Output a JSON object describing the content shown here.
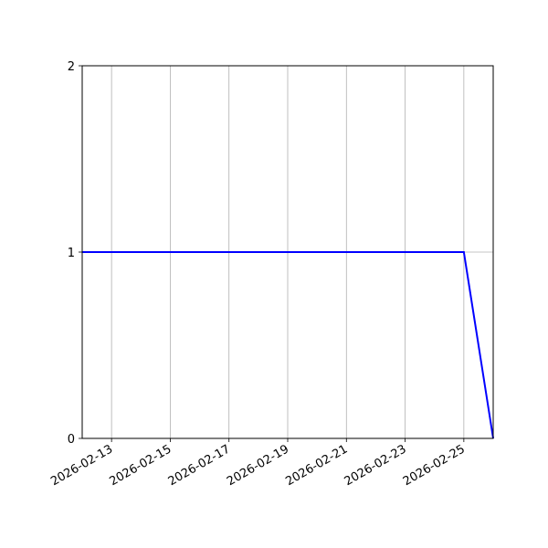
{
  "chart_data": {
    "type": "line",
    "title": "",
    "xlabel": "",
    "ylabel": "",
    "x": [
      "2026-02-12",
      "2026-02-13",
      "2026-02-14",
      "2026-02-15",
      "2026-02-16",
      "2026-02-17",
      "2026-02-18",
      "2026-02-19",
      "2026-02-20",
      "2026-02-21",
      "2026-02-22",
      "2026-02-23",
      "2026-02-24",
      "2026-02-25",
      "2026-02-26"
    ],
    "series": [
      {
        "values": [
          1,
          1,
          1,
          1,
          1,
          1,
          1,
          1,
          1,
          1,
          1,
          1,
          1,
          1,
          0
        ],
        "color": "#0000ff"
      }
    ],
    "xlim": [
      "2026-02-12",
      "2026-02-26"
    ],
    "ylim": [
      0,
      2
    ],
    "xticks": [
      "2026-02-13",
      "2026-02-15",
      "2026-02-17",
      "2026-02-19",
      "2026-02-21",
      "2026-02-23",
      "2026-02-25"
    ],
    "yticks": [
      "0",
      "1",
      "2"
    ],
    "grid": true,
    "grid_color": "#b0b0b0"
  }
}
